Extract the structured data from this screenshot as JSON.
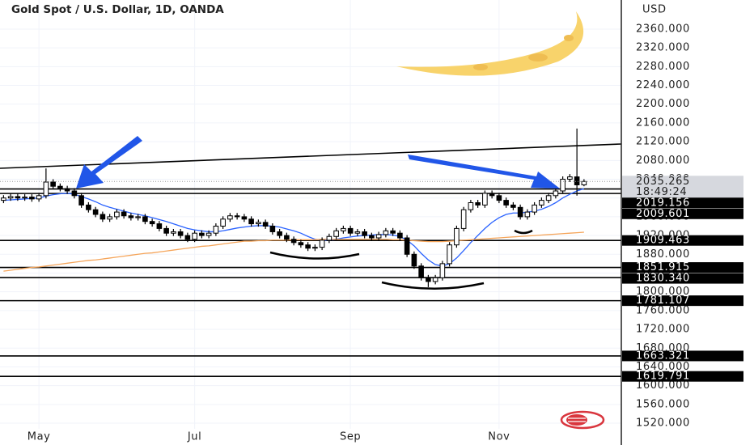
{
  "chart_data": {
    "type": "candlestick",
    "title": "Gold Spot / U.S. Dollar, 1D, OANDA",
    "currency": "USD",
    "categories": [
      null,
      null,
      null,
      null,
      null,
      "May",
      null,
      null,
      null,
      null,
      null,
      null,
      null,
      null,
      null,
      null,
      null,
      null,
      null,
      null,
      null,
      null,
      null,
      null,
      null,
      null,
      null,
      "Jul",
      null,
      null,
      null,
      null,
      null,
      null,
      null,
      null,
      null,
      null,
      null,
      null,
      null,
      null,
      null,
      null,
      null,
      null,
      null,
      null,
      null,
      "Sep",
      null,
      null,
      null,
      null,
      null,
      null,
      null,
      null,
      null,
      null,
      null,
      null,
      null,
      null,
      null,
      null,
      null,
      null,
      null,
      null,
      "Nov",
      null,
      null,
      null,
      null,
      null,
      null,
      null,
      null,
      null,
      null,
      null,
      null
    ],
    "open": [
      1995,
      2000,
      2003,
      2000,
      2002,
      1998,
      2005,
      2034,
      2025,
      2020,
      2015,
      2005,
      1985,
      1975,
      1965,
      1955,
      1960,
      1970,
      1962,
      1958,
      1960,
      1950,
      1945,
      1935,
      1925,
      1928,
      1920,
      1912,
      1925,
      1920,
      1925,
      1940,
      1955,
      1962,
      1960,
      1955,
      1945,
      1948,
      1940,
      1928,
      1920,
      1912,
      1905,
      1900,
      1893,
      1895,
      1910,
      1918,
      1930,
      1935,
      1925,
      1928,
      1920,
      1915,
      1922,
      1930,
      1925,
      1915,
      1880,
      1855,
      1830,
      1822,
      1830,
      1860,
      1900,
      1935,
      1975,
      1990,
      1985,
      2010,
      2005,
      1995,
      1985,
      1980,
      1960,
      1970,
      1985,
      1995,
      2005,
      2015,
      2040,
      2045,
      2028
    ],
    "high": [
      2006,
      2009,
      2009,
      2008,
      2008,
      2011,
      2063,
      2040,
      2031,
      2026,
      2021,
      2011,
      1991,
      1981,
      1971,
      1966,
      1976,
      1976,
      1968,
      1966,
      1966,
      1956,
      1951,
      1941,
      1934,
      1934,
      1926,
      1931,
      1931,
      1931,
      1946,
      1961,
      1968,
      1968,
      1966,
      1961,
      1954,
      1954,
      1946,
      1934,
      1926,
      1918,
      1911,
      1906,
      1901,
      1916,
      1924,
      1936,
      1941,
      1941,
      1934,
      1934,
      1926,
      1928,
      1936,
      1936,
      1931,
      1921,
      1886,
      1861,
      1836,
      1836,
      1866,
      1906,
      1941,
      1981,
      1996,
      1996,
      2016,
      2016,
      2011,
      2001,
      1991,
      1986,
      1976,
      1991,
      2001,
      2011,
      2021,
      2046,
      2051,
      2148,
      2040
    ],
    "low": [
      1989,
      1994,
      1994,
      1994,
      1992,
      1992,
      1999,
      2019,
      2014,
      2009,
      1999,
      1979,
      1969,
      1959,
      1949,
      1949,
      1954,
      1956,
      1952,
      1952,
      1944,
      1939,
      1929,
      1919,
      1919,
      1914,
      1906,
      1906,
      1914,
      1914,
      1919,
      1934,
      1949,
      1954,
      1949,
      1939,
      1939,
      1934,
      1922,
      1914,
      1906,
      1899,
      1894,
      1887,
      1887,
      1889,
      1904,
      1912,
      1924,
      1919,
      1919,
      1914,
      1909,
      1909,
      1916,
      1919,
      1909,
      1874,
      1849,
      1824,
      1810,
      1816,
      1824,
      1854,
      1894,
      1929,
      1969,
      1979,
      1979,
      1999,
      1989,
      1979,
      1974,
      1954,
      1954,
      1964,
      1979,
      1989,
      1999,
      2009,
      2034,
      2005,
      2025
    ],
    "close": [
      2000,
      2003,
      2000,
      2002,
      1998,
      2005,
      2034,
      2025,
      2020,
      2015,
      2005,
      1985,
      1975,
      1965,
      1955,
      1960,
      1970,
      1962,
      1958,
      1960,
      1950,
      1945,
      1935,
      1925,
      1928,
      1920,
      1912,
      1925,
      1920,
      1925,
      1940,
      1955,
      1962,
      1960,
      1955,
      1945,
      1948,
      1940,
      1928,
      1920,
      1912,
      1905,
      1900,
      1893,
      1895,
      1910,
      1918,
      1930,
      1935,
      1925,
      1928,
      1920,
      1915,
      1922,
      1930,
      1925,
      1915,
      1880,
      1855,
      1830,
      1822,
      1830,
      1860,
      1900,
      1935,
      1975,
      1990,
      1985,
      2010,
      2005,
      1995,
      1985,
      1980,
      1960,
      1970,
      1985,
      1995,
      2005,
      2015,
      2040,
      2045,
      2028,
      2035.265
    ],
    "up_color": "#ffffff",
    "down_color": "#000000",
    "moving_averages": [
      {
        "color": "#2962ff",
        "values": [
          1995,
          1996,
          1997,
          1998,
          1999,
          2000,
          2004,
          2007,
          2009,
          2010,
          2008,
          2003,
          1998,
          1992,
          1985,
          1980,
          1976,
          1972,
          1968,
          1965,
          1962,
          1958,
          1954,
          1950,
          1945,
          1940,
          1935,
          1932,
          1930,
          1928,
          1928,
          1930,
          1933,
          1936,
          1938,
          1940,
          1941,
          1941,
          1940,
          1938,
          1934,
          1930,
          1925,
          1918,
          1912,
          1910,
          1910,
          1912,
          1915,
          1917,
          1919,
          1920,
          1921,
          1922,
          1922,
          1921,
          1918,
          1910,
          1898,
          1882,
          1868,
          1858,
          1855,
          1860,
          1872,
          1888,
          1905,
          1920,
          1935,
          1948,
          1958,
          1965,
          1968,
          1968,
          1970,
          1972,
          1976,
          1982,
          1990,
          2000,
          2008,
          2015,
          2020
        ]
      },
      {
        "color": "#f5a55a",
        "values": [
          1844,
          1846,
          1848,
          1850,
          1852,
          1853,
          1855,
          1857,
          1859,
          1861,
          1863,
          1865,
          1867,
          1868,
          1870,
          1872,
          1874,
          1876,
          1878,
          1880,
          1882,
          1883,
          1885,
          1887,
          1889,
          1891,
          1893,
          1895,
          1897,
          1898,
          1900,
          1902,
          1904,
          1906,
          1908,
          1908,
          1909,
          1909,
          1910,
          1910,
          1910,
          1911,
          1911,
          1911,
          1911,
          1912,
          1912,
          1912,
          1912,
          1912,
          1912,
          1912,
          1912,
          1912,
          1912,
          1911,
          1911,
          1910,
          1909,
          1908,
          1907,
          1907,
          1907,
          1908,
          1909,
          1910,
          1911,
          1912,
          1913,
          1914,
          1915,
          1916,
          1917,
          1918,
          1919,
          1920,
          1921,
          1922,
          1923,
          1924,
          1925,
          1926,
          1927
        ]
      }
    ],
    "countdown": "18:49:24",
    "levels": [
      2019.156,
      2009.601,
      1909.463,
      1851.915,
      1830.34,
      1781.107,
      1663.321,
      1619.791
    ],
    "level_labels": [
      "2019.156",
      "2009.601",
      "1909.463",
      "1851.915",
      "1830.340",
      "1781.107",
      "1663.321",
      "1619.791"
    ],
    "ylim": [
      1508,
      2422
    ],
    "yticks": [
      {
        "value": 1520,
        "label": "1520.000"
      },
      {
        "value": 1560,
        "label": "1560.000"
      },
      {
        "value": 1600,
        "label": "1600.000"
      },
      {
        "value": 1640,
        "label": "1640.000"
      },
      {
        "value": 1680,
        "label": "1680.000"
      },
      {
        "value": 1720,
        "label": "1720.000"
      },
      {
        "value": 1760,
        "label": "1760.000"
      },
      {
        "value": 1800,
        "label": "1800.000"
      },
      {
        "value": 1840,
        "label": "1840.000"
      },
      {
        "value": 1880,
        "label": "1880.000"
      },
      {
        "value": 1920,
        "label": "1920.000"
      },
      {
        "value": 1960,
        "label": "1960.000"
      },
      {
        "value": 2000,
        "label": "2000.000"
      },
      {
        "value": 2040,
        "label": "2040.000"
      },
      {
        "value": 2080,
        "label": "2080.000"
      },
      {
        "value": 2120,
        "label": "2120.000"
      },
      {
        "value": 2160,
        "label": "2160.000"
      },
      {
        "value": 2200,
        "label": "2200.000"
      },
      {
        "value": 2240,
        "label": "2240.000"
      },
      {
        "value": 2280,
        "label": "2280.000"
      },
      {
        "value": 2320,
        "label": "2320.000"
      },
      {
        "value": 2360,
        "label": "2360.000"
      }
    ],
    "grid": true
  }
}
